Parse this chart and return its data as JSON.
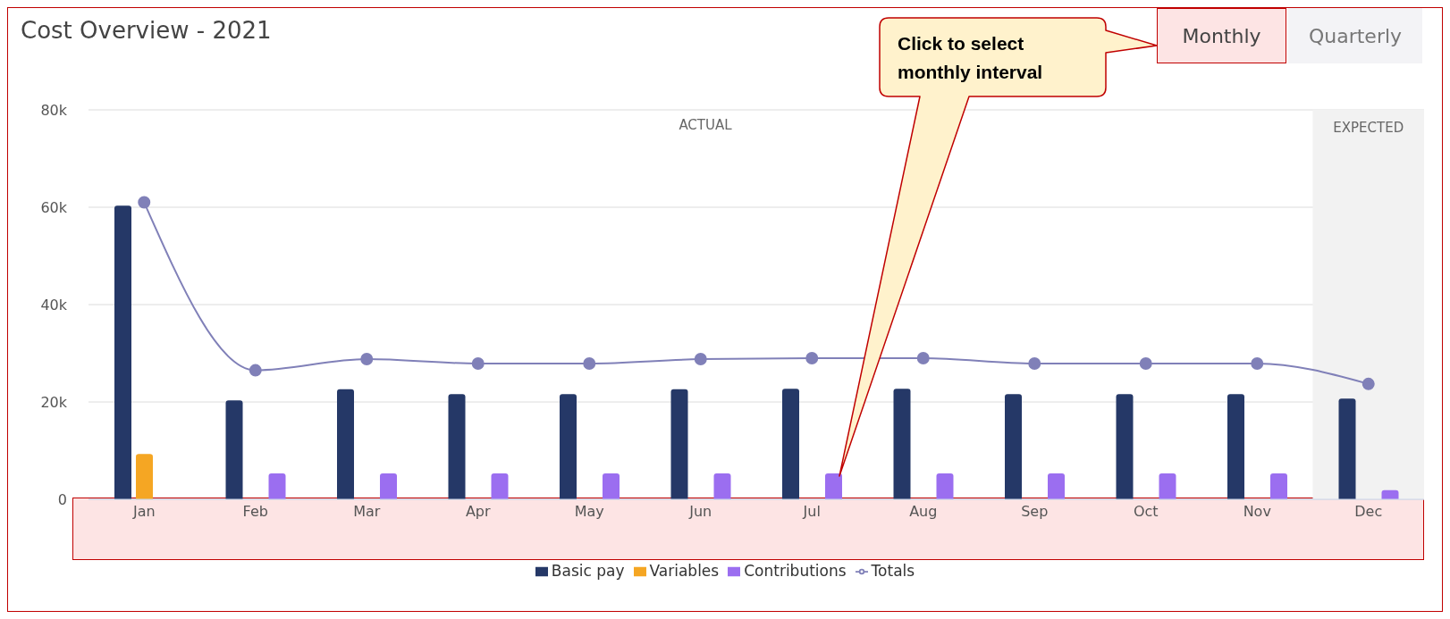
{
  "chart_data": {
    "type": "bar",
    "title": "Cost Overview - 2021",
    "categories": [
      "Jan",
      "Feb",
      "Mar",
      "Apr",
      "May",
      "Jun",
      "Jul",
      "Aug",
      "Sep",
      "Oct",
      "Nov",
      "Dec"
    ],
    "series": [
      {
        "name": "Basic pay",
        "color": "#253867",
        "values": [
          60300,
          20300,
          22600,
          21600,
          21600,
          22600,
          22700,
          22700,
          21600,
          21600,
          21600,
          20700
        ]
      },
      {
        "name": "Variables",
        "color": "#f5a623",
        "values": [
          9300,
          null,
          null,
          null,
          null,
          null,
          null,
          null,
          null,
          null,
          null,
          null
        ]
      },
      {
        "name": "Contributions",
        "color": "#9b6ef0",
        "values": [
          null,
          5300,
          5300,
          5300,
          5300,
          5300,
          5300,
          5300,
          5300,
          5300,
          5300,
          1900
        ]
      },
      {
        "name": "Totals",
        "type": "line",
        "color": "#8080b8",
        "values": [
          61000,
          26500,
          28800,
          27900,
          27900,
          28800,
          29000,
          29000,
          27900,
          27900,
          27900,
          23700
        ]
      }
    ],
    "ylim": [
      0,
      80000
    ],
    "yticks": [
      {
        "value": 0,
        "label": "0"
      },
      {
        "value": 20000,
        "label": "20k"
      },
      {
        "value": 40000,
        "label": "40k"
      },
      {
        "value": 60000,
        "label": "60k"
      },
      {
        "value": 80000,
        "label": "80k"
      }
    ],
    "grid": "y",
    "legend": "bottom",
    "marker": "circle",
    "bands": [
      {
        "axis": "x",
        "from": "Dec",
        "to": "Dec",
        "label": "EXPECTED",
        "color": "#f2f2f2"
      }
    ],
    "annotations": [
      "Click to select monthly interval",
      "Monthly",
      "Quarterly",
      "ACTUAL"
    ]
  }
}
